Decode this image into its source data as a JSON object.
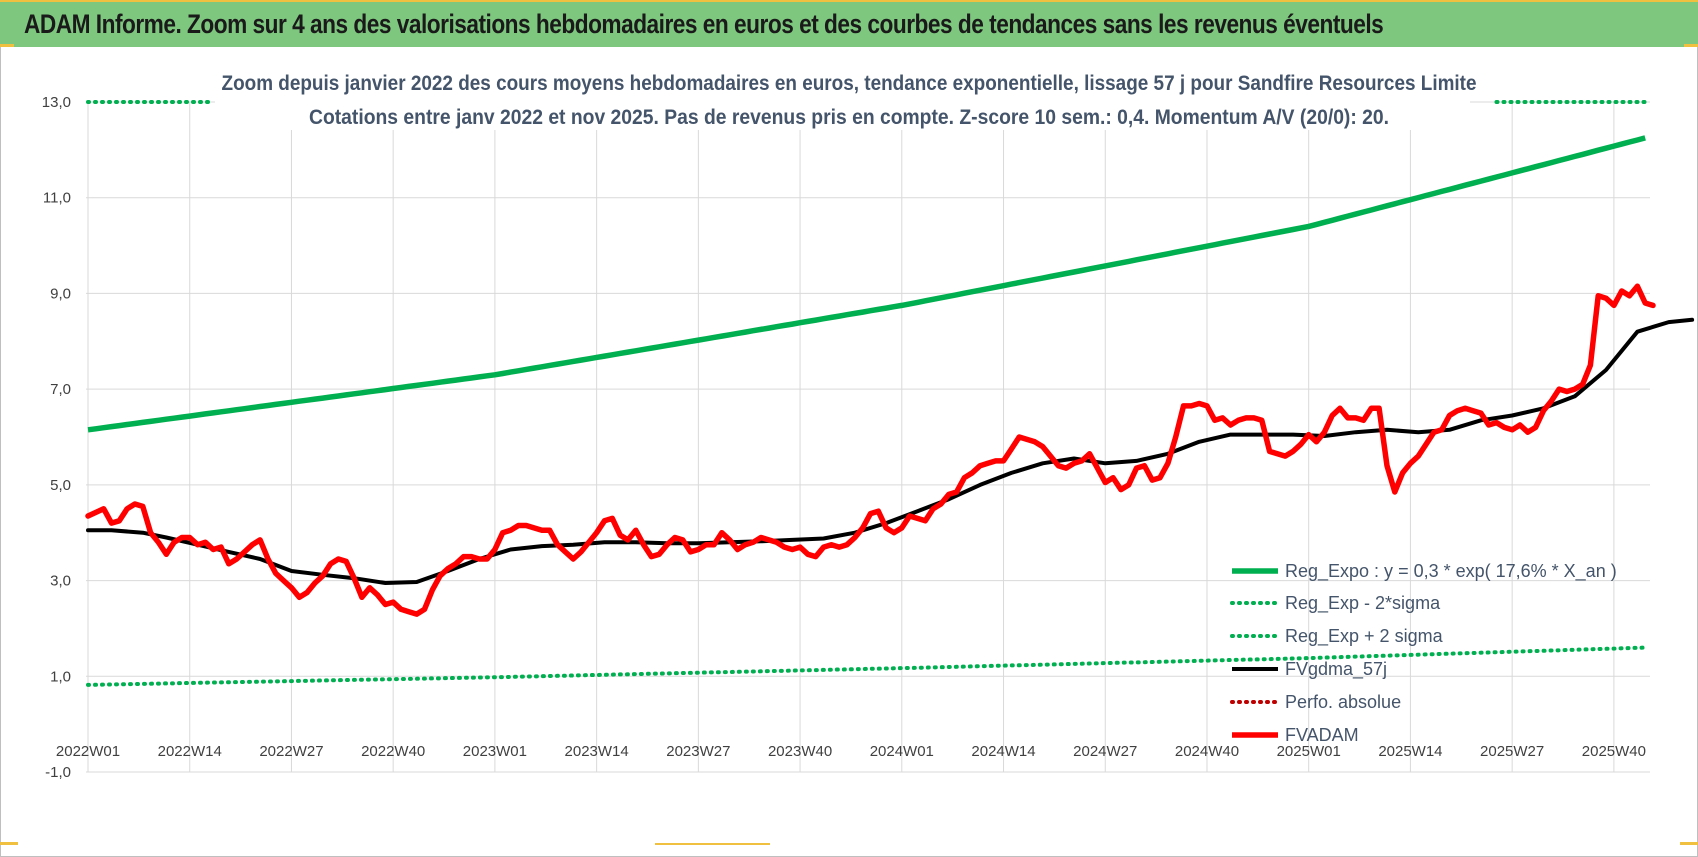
{
  "banner": {
    "title": "ADAM Informe. Zoom sur 4 ans des valorisations hebdomadaires en euros et des courbes de tendances sans les revenus éventuels"
  },
  "colors": {
    "banner_bg": "#7ec77e",
    "trend": "#00b050",
    "bands": "#00b050",
    "price": "#ff0000",
    "ma": "#000000",
    "perfo": "#c00000",
    "grid": "#d9d9d9"
  },
  "chart_data": {
    "type": "line",
    "title": "Zoom depuis janvier 2022 des cours moyens hebdomadaires en euros, tendance exponentielle, lissage 57 j pour Sandfire Resources Limite",
    "subtitle": "Cotations entre janv 2022 et nov 2025. Pas de revenus pris en compte. Z-score 10 sem.: 0,4. Momentum A/V (20/0): 20.",
    "xlabel": "",
    "ylabel": "",
    "ylim": [
      -1,
      13
    ],
    "yticks": [
      {
        "v": 13,
        "label": "13,0"
      },
      {
        "v": 11,
        "label": "11,0"
      },
      {
        "v": 9,
        "label": "9,0"
      },
      {
        "v": 7,
        "label": "7,0"
      },
      {
        "v": 5,
        "label": "5,0"
      },
      {
        "v": 3,
        "label": "3,0"
      },
      {
        "v": 1,
        "label": "1,0"
      },
      {
        "v": -1,
        "label": "-1,0"
      }
    ],
    "n_weeks": 200,
    "x_tick_labels": [
      {
        "w": 0,
        "label": "2022W01"
      },
      {
        "w": 13,
        "label": "2022W14"
      },
      {
        "w": 26,
        "label": "2022W27"
      },
      {
        "w": 39,
        "label": "2022W40"
      },
      {
        "w": 52,
        "label": "2023W01"
      },
      {
        "w": 65,
        "label": "2023W14"
      },
      {
        "w": 78,
        "label": "2023W27"
      },
      {
        "w": 91,
        "label": "2023W40"
      },
      {
        "w": 104,
        "label": "2024W01"
      },
      {
        "w": 117,
        "label": "2024W14"
      },
      {
        "w": 130,
        "label": "2024W27"
      },
      {
        "w": 143,
        "label": "2024W40"
      },
      {
        "w": 156,
        "label": "2025W01"
      },
      {
        "w": 169,
        "label": "2025W14"
      },
      {
        "w": 182,
        "label": "2025W27"
      },
      {
        "w": 195,
        "label": "2025W40"
      }
    ],
    "legend": [
      {
        "key": "trend",
        "label": "Reg_Expo : y = 0,3 * exp( 17,6% * X_an )",
        "style": "solid",
        "color": "#00b050"
      },
      {
        "key": "lower",
        "label": "Reg_Exp - 2*sigma",
        "style": "dotted",
        "color": "#00b050"
      },
      {
        "key": "upper",
        "label": "Reg_Exp + 2 sigma",
        "style": "dotted",
        "color": "#00b050"
      },
      {
        "key": "ma",
        "label": "FVgdma_57j",
        "style": "solid",
        "color": "#000000"
      },
      {
        "key": "perfo",
        "label": "Perfo. absolue",
        "style": "dotted",
        "color": "#c00000"
      },
      {
        "key": "price",
        "label": "FVADAM",
        "style": "solid",
        "color": "#ff0000"
      }
    ],
    "series": [
      {
        "name": "Reg_Expo",
        "points": [
          [
            0,
            6.15
          ],
          [
            52,
            7.3
          ],
          [
            104,
            8.75
          ],
          [
            156,
            10.4
          ],
          [
            199,
            12.25
          ]
        ]
      },
      {
        "name": "Reg_Exp - 2*sigma",
        "points": [
          [
            0,
            0.82
          ],
          [
            52,
            0.98
          ],
          [
            104,
            1.17
          ],
          [
            156,
            1.38
          ],
          [
            199,
            1.6
          ]
        ]
      },
      {
        "name": "Reg_Exp + 2 sigma",
        "points": [
          [
            0,
            13.0
          ],
          [
            199,
            13.0
          ]
        ],
        "visible_ranges": [
          [
            0,
            16
          ],
          [
            180,
            199
          ]
        ]
      },
      {
        "name": "FVgdma_57j",
        "points": [
          [
            0,
            4.05
          ],
          [
            3,
            4.05
          ],
          [
            7,
            4.0
          ],
          [
            10,
            3.9
          ],
          [
            14,
            3.75
          ],
          [
            18,
            3.6
          ],
          [
            22,
            3.45
          ],
          [
            26,
            3.2
          ],
          [
            30,
            3.12
          ],
          [
            34,
            3.05
          ],
          [
            38,
            2.95
          ],
          [
            42,
            2.97
          ],
          [
            46,
            3.2
          ],
          [
            50,
            3.45
          ],
          [
            54,
            3.65
          ],
          [
            58,
            3.72
          ],
          [
            62,
            3.75
          ],
          [
            66,
            3.8
          ],
          [
            70,
            3.8
          ],
          [
            74,
            3.78
          ],
          [
            78,
            3.78
          ],
          [
            82,
            3.8
          ],
          [
            86,
            3.82
          ],
          [
            90,
            3.85
          ],
          [
            94,
            3.88
          ],
          [
            98,
            4.0
          ],
          [
            102,
            4.2
          ],
          [
            106,
            4.45
          ],
          [
            110,
            4.7
          ],
          [
            114,
            5.0
          ],
          [
            118,
            5.25
          ],
          [
            122,
            5.45
          ],
          [
            126,
            5.55
          ],
          [
            130,
            5.45
          ],
          [
            134,
            5.5
          ],
          [
            138,
            5.65
          ],
          [
            142,
            5.9
          ],
          [
            146,
            6.05
          ],
          [
            150,
            6.05
          ],
          [
            154,
            6.05
          ],
          [
            158,
            6.02
          ],
          [
            162,
            6.1
          ],
          [
            166,
            6.15
          ],
          [
            170,
            6.1
          ],
          [
            174,
            6.15
          ],
          [
            178,
            6.35
          ],
          [
            182,
            6.45
          ],
          [
            186,
            6.6
          ],
          [
            190,
            6.85
          ],
          [
            194,
            7.4
          ],
          [
            198,
            8.2
          ],
          [
            202,
            8.4
          ],
          [
            205,
            8.45
          ]
        ]
      },
      {
        "name": "FVADAM",
        "points": [
          [
            0,
            4.35
          ],
          [
            2,
            4.5
          ],
          [
            3,
            4.2
          ],
          [
            4,
            4.25
          ],
          [
            5,
            4.5
          ],
          [
            6,
            4.6
          ],
          [
            7,
            4.55
          ],
          [
            8,
            4.0
          ],
          [
            9,
            3.8
          ],
          [
            10,
            3.55
          ],
          [
            11,
            3.8
          ],
          [
            12,
            3.9
          ],
          [
            13,
            3.9
          ],
          [
            14,
            3.75
          ],
          [
            15,
            3.8
          ],
          [
            16,
            3.65
          ],
          [
            17,
            3.7
          ],
          [
            18,
            3.35
          ],
          [
            19,
            3.45
          ],
          [
            20,
            3.6
          ],
          [
            21,
            3.75
          ],
          [
            22,
            3.85
          ],
          [
            23,
            3.45
          ],
          [
            24,
            3.15
          ],
          [
            25,
            3.0
          ],
          [
            26,
            2.85
          ],
          [
            27,
            2.65
          ],
          [
            28,
            2.75
          ],
          [
            29,
            2.95
          ],
          [
            30,
            3.1
          ],
          [
            31,
            3.35
          ],
          [
            32,
            3.45
          ],
          [
            33,
            3.4
          ],
          [
            34,
            3.05
          ],
          [
            35,
            2.65
          ],
          [
            36,
            2.85
          ],
          [
            37,
            2.7
          ],
          [
            38,
            2.5
          ],
          [
            39,
            2.55
          ],
          [
            40,
            2.4
          ],
          [
            41,
            2.35
          ],
          [
            42,
            2.3
          ],
          [
            43,
            2.4
          ],
          [
            44,
            2.8
          ],
          [
            45,
            3.1
          ],
          [
            46,
            3.25
          ],
          [
            47,
            3.35
          ],
          [
            48,
            3.5
          ],
          [
            49,
            3.5
          ],
          [
            50,
            3.45
          ],
          [
            51,
            3.45
          ],
          [
            52,
            3.65
          ],
          [
            53,
            4.0
          ],
          [
            54,
            4.05
          ],
          [
            55,
            4.15
          ],
          [
            56,
            4.15
          ],
          [
            57,
            4.1
          ],
          [
            58,
            4.05
          ],
          [
            59,
            4.05
          ],
          [
            60,
            3.75
          ],
          [
            61,
            3.6
          ],
          [
            62,
            3.45
          ],
          [
            63,
            3.6
          ],
          [
            64,
            3.8
          ],
          [
            65,
            4.0
          ],
          [
            66,
            4.25
          ],
          [
            67,
            4.3
          ],
          [
            68,
            3.95
          ],
          [
            69,
            3.85
          ],
          [
            70,
            4.05
          ],
          [
            71,
            3.75
          ],
          [
            72,
            3.5
          ],
          [
            73,
            3.55
          ],
          [
            74,
            3.75
          ],
          [
            75,
            3.9
          ],
          [
            76,
            3.85
          ],
          [
            77,
            3.6
          ],
          [
            78,
            3.65
          ],
          [
            79,
            3.75
          ],
          [
            80,
            3.75
          ],
          [
            81,
            4.0
          ],
          [
            82,
            3.85
          ],
          [
            83,
            3.65
          ],
          [
            84,
            3.75
          ],
          [
            85,
            3.8
          ],
          [
            86,
            3.9
          ],
          [
            87,
            3.85
          ],
          [
            88,
            3.8
          ],
          [
            89,
            3.7
          ],
          [
            90,
            3.65
          ],
          [
            91,
            3.7
          ],
          [
            92,
            3.55
          ],
          [
            93,
            3.5
          ],
          [
            94,
            3.7
          ],
          [
            95,
            3.75
          ],
          [
            96,
            3.7
          ],
          [
            97,
            3.75
          ],
          [
            98,
            3.9
          ],
          [
            99,
            4.1
          ],
          [
            100,
            4.4
          ],
          [
            101,
            4.45
          ],
          [
            102,
            4.1
          ],
          [
            103,
            4.0
          ],
          [
            104,
            4.1
          ],
          [
            105,
            4.35
          ],
          [
            106,
            4.3
          ],
          [
            107,
            4.25
          ],
          [
            108,
            4.5
          ],
          [
            109,
            4.6
          ],
          [
            110,
            4.8
          ],
          [
            111,
            4.85
          ],
          [
            112,
            5.15
          ],
          [
            113,
            5.25
          ],
          [
            114,
            5.4
          ],
          [
            115,
            5.45
          ],
          [
            116,
            5.5
          ],
          [
            117,
            5.5
          ],
          [
            118,
            5.75
          ],
          [
            119,
            6.0
          ],
          [
            120,
            5.95
          ],
          [
            121,
            5.9
          ],
          [
            122,
            5.8
          ],
          [
            123,
            5.6
          ],
          [
            124,
            5.4
          ],
          [
            125,
            5.35
          ],
          [
            126,
            5.45
          ],
          [
            127,
            5.5
          ],
          [
            128,
            5.65
          ],
          [
            129,
            5.35
          ],
          [
            130,
            5.05
          ],
          [
            131,
            5.15
          ],
          [
            132,
            4.9
          ],
          [
            133,
            5.0
          ],
          [
            134,
            5.35
          ],
          [
            135,
            5.4
          ],
          [
            136,
            5.1
          ],
          [
            137,
            5.15
          ],
          [
            138,
            5.45
          ],
          [
            139,
            6.0
          ],
          [
            140,
            6.65
          ],
          [
            141,
            6.65
          ],
          [
            142,
            6.7
          ],
          [
            143,
            6.65
          ],
          [
            144,
            6.35
          ],
          [
            145,
            6.4
          ],
          [
            146,
            6.25
          ],
          [
            147,
            6.35
          ],
          [
            148,
            6.4
          ],
          [
            149,
            6.4
          ],
          [
            150,
            6.35
          ],
          [
            151,
            5.7
          ],
          [
            152,
            5.65
          ],
          [
            153,
            5.6
          ],
          [
            154,
            5.7
          ],
          [
            155,
            5.85
          ],
          [
            156,
            6.05
          ],
          [
            157,
            5.9
          ],
          [
            158,
            6.1
          ],
          [
            159,
            6.45
          ],
          [
            160,
            6.6
          ],
          [
            161,
            6.4
          ],
          [
            162,
            6.4
          ],
          [
            163,
            6.35
          ],
          [
            164,
            6.6
          ],
          [
            165,
            6.6
          ],
          [
            166,
            5.4
          ],
          [
            167,
            4.85
          ],
          [
            168,
            5.25
          ],
          [
            169,
            5.45
          ],
          [
            170,
            5.6
          ],
          [
            171,
            5.85
          ],
          [
            172,
            6.1
          ],
          [
            173,
            6.15
          ],
          [
            174,
            6.45
          ],
          [
            175,
            6.55
          ],
          [
            176,
            6.6
          ],
          [
            177,
            6.55
          ],
          [
            178,
            6.5
          ],
          [
            179,
            6.25
          ],
          [
            180,
            6.3
          ],
          [
            181,
            6.2
          ],
          [
            182,
            6.15
          ],
          [
            183,
            6.25
          ],
          [
            184,
            6.1
          ],
          [
            185,
            6.2
          ],
          [
            186,
            6.55
          ],
          [
            187,
            6.75
          ],
          [
            188,
            7.0
          ],
          [
            189,
            6.95
          ],
          [
            190,
            7.0
          ],
          [
            191,
            7.1
          ],
          [
            192,
            7.5
          ],
          [
            193,
            8.95
          ],
          [
            194,
            8.9
          ],
          [
            195,
            8.75
          ],
          [
            196,
            9.05
          ],
          [
            197,
            8.95
          ],
          [
            198,
            9.15
          ],
          [
            199,
            8.8
          ],
          [
            200,
            8.75
          ]
        ]
      }
    ]
  }
}
